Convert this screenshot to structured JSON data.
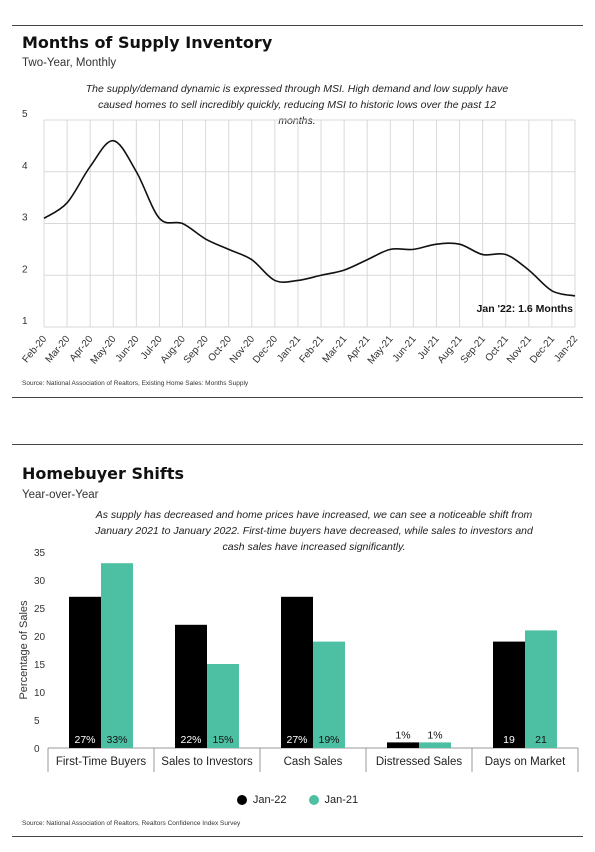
{
  "section1": {
    "title": "Months of Supply Inventory",
    "subtitle": "Two-Year, Monthly",
    "description": "The supply/demand dynamic is expressed through MSI. High demand and low supply have caused homes to sell incredibly quickly, reducing MSI to historic lows over the past 12 months.",
    "source": "Source: National Association of Realtors, Existing Home Sales: Months Supply"
  },
  "section2": {
    "title": "Homebuyer Shifts",
    "subtitle": "Year-over-Year",
    "description": "As supply has decreased and home prices have increased, we can see a noticeable shift from January 2021 to January 2022. First-time buyers have decreased, while sales to investors and cash sales have increased significantly.",
    "source": "Source: National Association of Realtors, Realtors Confidence Index Survey"
  },
  "colors": {
    "line": "#111111",
    "jan22": "#000000",
    "jan21": "#4dbfa2",
    "grid": "#d9d9d9"
  },
  "chart_data": [
    {
      "type": "line",
      "x": [
        "Feb-20",
        "Mar-20",
        "Apr-20",
        "May-20",
        "Jun-20",
        "Jul-20",
        "Aug-20",
        "Sep-20",
        "Oct-20",
        "Nov-20",
        "Dec-20",
        "Jan-21",
        "Feb-21",
        "Mar-21",
        "Apr-21",
        "May-21",
        "Jun-21",
        "Jul-21",
        "Aug-21",
        "Sep-21",
        "Oct-21",
        "Nov-21",
        "Dec-21",
        "Jan-22"
      ],
      "values": [
        3.1,
        3.4,
        4.1,
        4.6,
        4.0,
        3.1,
        3.0,
        2.7,
        2.5,
        2.3,
        1.9,
        1.9,
        2.0,
        2.1,
        2.3,
        2.5,
        2.5,
        2.6,
        2.6,
        2.4,
        2.4,
        2.1,
        1.7,
        1.6
      ],
      "ylim": [
        1,
        5
      ],
      "yticks": [
        1,
        2,
        3,
        4,
        5
      ],
      "grid": true,
      "annotation": "Jan '22: 1.6 Months"
    },
    {
      "type": "bar",
      "categories": [
        "First-Time Buyers",
        "Sales to Investors",
        "Cash Sales",
        "Distressed Sales",
        "Days on Market"
      ],
      "series": [
        {
          "name": "Jan-22",
          "values": [
            27,
            22,
            27,
            1,
            19
          ],
          "labels": [
            "27%",
            "22%",
            "27%",
            "1%",
            "19"
          ]
        },
        {
          "name": "Jan-21",
          "values": [
            33,
            15,
            19,
            1,
            21
          ],
          "labels": [
            "33%",
            "15%",
            "19%",
            "1%",
            "21"
          ]
        }
      ],
      "ylabel": "Percentage of Sales",
      "ylim": [
        0,
        35
      ],
      "yticks": [
        0,
        5,
        10,
        15,
        20,
        25,
        30,
        35
      ],
      "grid": false,
      "legend": "bottom"
    }
  ]
}
